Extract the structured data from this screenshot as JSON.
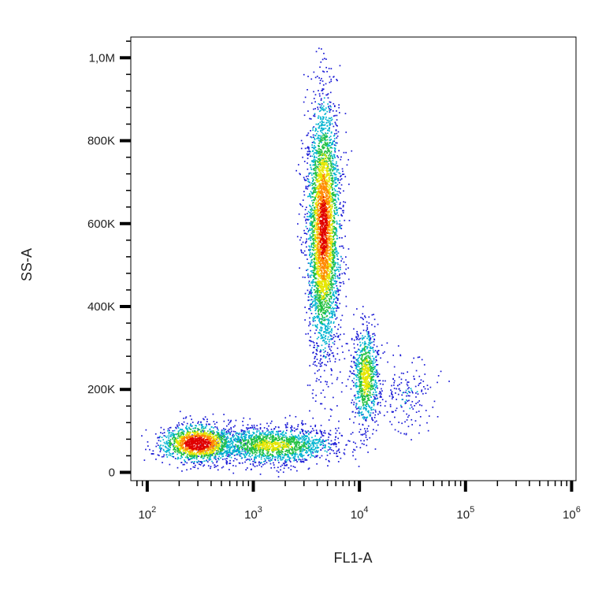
{
  "chart_data": {
    "type": "scatter",
    "title": "",
    "xlabel": "FL1-A",
    "ylabel": "SS-A",
    "x_scale": "log",
    "x_range": [
      70,
      1100000
    ],
    "y_scale": "linear",
    "y_range": [
      -20000,
      1050000
    ],
    "grid": false,
    "legend": "none",
    "density_colormap": [
      "#1a1ad6",
      "#00b4d0",
      "#22c040",
      "#e6e600",
      "#ff8800",
      "#e00000"
    ],
    "x_ticks": [
      {
        "value": 100,
        "base": "10",
        "exp": "2"
      },
      {
        "value": 1000,
        "base": "10",
        "exp": "3"
      },
      {
        "value": 10000,
        "base": "10",
        "exp": "4"
      },
      {
        "value": 100000,
        "base": "10",
        "exp": "5"
      },
      {
        "value": 1000000,
        "base": "10",
        "exp": "6"
      }
    ],
    "y_ticks": [
      {
        "value": 0,
        "label": "0"
      },
      {
        "value": 200000,
        "label": "200K"
      },
      {
        "value": 400000,
        "label": "400K"
      },
      {
        "value": 600000,
        "label": "600K"
      },
      {
        "value": 800000,
        "label": "800K"
      },
      {
        "value": 1000000,
        "label": "1,0M"
      }
    ],
    "populations": [
      {
        "center_x": 300,
        "center_y": 70000,
        "sd_logx": 0.17,
        "sd_y": 22000,
        "points": 1500,
        "peak": 1.0
      },
      {
        "center_x": 1500,
        "center_y": 65000,
        "sd_logx": 0.3,
        "sd_y": 22000,
        "points": 1700,
        "peak": 0.5
      },
      {
        "center_x": 4600,
        "center_y": 590000,
        "sd_logx": 0.075,
        "sd_y": 150000,
        "points": 3800,
        "peak": 0.85
      },
      {
        "center_x": 11500,
        "center_y": 230000,
        "sd_logx": 0.06,
        "sd_y": 58000,
        "points": 900,
        "peak": 0.55
      },
      {
        "center_x": 28000,
        "center_y": 180000,
        "sd_logx": 0.14,
        "sd_y": 45000,
        "points": 180,
        "peak": 0.1
      }
    ]
  }
}
